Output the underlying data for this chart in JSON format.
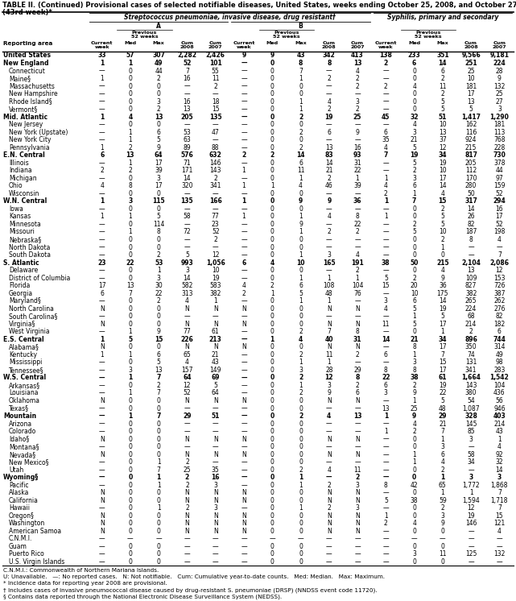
{
  "title_line1": "TABLE II. (Continued) Provisional cases of selected notifiable diseases, United States, weeks ending October 25, 2008, and October 27, 2007",
  "title_line2": "(43rd week)*",
  "col_group1": "Streptococcus pneumoniae, invasive disease, drug resistant†",
  "col_group1a": "A",
  "col_group1b": "B",
  "col_group2": "Syphilis, primary and secondary",
  "footnotes": [
    "C.N.M.I.: Commonwealth of Northern Mariana Islands.",
    "U: Unavailable.   —: No reported cases.   N: Not notifiable.   Cum: Cumulative year-to-date counts.   Med: Median.   Max: Maximum.",
    "* Incidence data for reporting year 2008 are provisional.",
    "† Includes cases of invasive pneumococcal disease caused by drug-resistant S. pneumoniae (DRSP) (NNDSS event code 11720).",
    "§ Contains data reported through the National Electronic Disease Surveillance System (NEDSS)."
  ],
  "rows": [
    [
      "United States",
      "33",
      "57",
      "307",
      "2,282",
      "2,426",
      "9",
      "9",
      "43",
      "342",
      "413",
      "138",
      "233",
      "351",
      "9,566",
      "9,181"
    ],
    [
      "New England",
      "1",
      "1",
      "49",
      "52",
      "101",
      "—",
      "0",
      "8",
      "8",
      "13",
      "2",
      "6",
      "14",
      "251",
      "224"
    ],
    [
      "Connecticut",
      "—",
      "0",
      "44",
      "7",
      "55",
      "—",
      "0",
      "7",
      "—",
      "4",
      "—",
      "0",
      "6",
      "25",
      "28"
    ],
    [
      "Maine§",
      "1",
      "0",
      "2",
      "16",
      "11",
      "—",
      "0",
      "1",
      "2",
      "2",
      "—",
      "0",
      "2",
      "10",
      "9"
    ],
    [
      "Massachusetts",
      "—",
      "0",
      "0",
      "—",
      "2",
      "—",
      "0",
      "0",
      "—",
      "2",
      "2",
      "4",
      "11",
      "181",
      "132"
    ],
    [
      "New Hampshire",
      "—",
      "0",
      "0",
      "—",
      "—",
      "—",
      "0",
      "0",
      "—",
      "—",
      "—",
      "0",
      "2",
      "17",
      "25"
    ],
    [
      "Rhode Island§",
      "—",
      "0",
      "3",
      "16",
      "18",
      "—",
      "0",
      "1",
      "4",
      "3",
      "—",
      "0",
      "5",
      "13",
      "27"
    ],
    [
      "Vermont§",
      "—",
      "0",
      "2",
      "13",
      "15",
      "—",
      "0",
      "1",
      "2",
      "2",
      "—",
      "0",
      "5",
      "5",
      "3"
    ],
    [
      "Mid. Atlantic",
      "1",
      "4",
      "13",
      "205",
      "135",
      "—",
      "0",
      "2",
      "19",
      "25",
      "45",
      "32",
      "51",
      "1,417",
      "1,290"
    ],
    [
      "New Jersey",
      "—",
      "0",
      "0",
      "—",
      "—",
      "—",
      "0",
      "0",
      "—",
      "—",
      "—",
      "4",
      "10",
      "162",
      "181"
    ],
    [
      "New York (Upstate)",
      "—",
      "1",
      "6",
      "53",
      "47",
      "—",
      "0",
      "2",
      "6",
      "9",
      "6",
      "3",
      "13",
      "116",
      "113"
    ],
    [
      "New York City",
      "—",
      "1",
      "5",
      "63",
      "—",
      "—",
      "0",
      "0",
      "—",
      "—",
      "35",
      "21",
      "37",
      "924",
      "768"
    ],
    [
      "Pennsylvania",
      "1",
      "2",
      "9",
      "89",
      "88",
      "—",
      "0",
      "2",
      "13",
      "16",
      "4",
      "5",
      "12",
      "215",
      "228"
    ],
    [
      "E.N. Central",
      "6",
      "13",
      "64",
      "576",
      "632",
      "2",
      "2",
      "14",
      "83",
      "93",
      "7",
      "19",
      "34",
      "817",
      "730"
    ],
    [
      "Illinois",
      "—",
      "1",
      "17",
      "71",
      "146",
      "—",
      "0",
      "6",
      "14",
      "31",
      "—",
      "5",
      "19",
      "205",
      "378"
    ],
    [
      "Indiana",
      "2",
      "2",
      "39",
      "171",
      "143",
      "1",
      "0",
      "11",
      "21",
      "22",
      "—",
      "2",
      "10",
      "112",
      "44"
    ],
    [
      "Michigan",
      "—",
      "0",
      "3",
      "14",
      "2",
      "—",
      "0",
      "1",
      "2",
      "1",
      "1",
      "3",
      "17",
      "170",
      "97"
    ],
    [
      "Ohio",
      "4",
      "8",
      "17",
      "320",
      "341",
      "1",
      "1",
      "4",
      "46",
      "39",
      "4",
      "6",
      "14",
      "280",
      "159"
    ],
    [
      "Wisconsin",
      "—",
      "0",
      "0",
      "—",
      "—",
      "—",
      "0",
      "0",
      "—",
      "—",
      "2",
      "1",
      "4",
      "50",
      "52"
    ],
    [
      "W.N. Central",
      "1",
      "3",
      "115",
      "135",
      "166",
      "1",
      "0",
      "9",
      "9",
      "36",
      "1",
      "7",
      "15",
      "317",
      "294"
    ],
    [
      "Iowa",
      "—",
      "0",
      "0",
      "—",
      "—",
      "—",
      "0",
      "0",
      "—",
      "—",
      "—",
      "0",
      "2",
      "14",
      "16"
    ],
    [
      "Kansas",
      "1",
      "1",
      "5",
      "58",
      "77",
      "1",
      "0",
      "1",
      "4",
      "8",
      "1",
      "0",
      "5",
      "26",
      "17"
    ],
    [
      "Minnesota",
      "—",
      "0",
      "114",
      "—",
      "23",
      "—",
      "0",
      "9",
      "—",
      "22",
      "—",
      "2",
      "5",
      "82",
      "52"
    ],
    [
      "Missouri",
      "—",
      "1",
      "8",
      "72",
      "52",
      "—",
      "0",
      "1",
      "2",
      "2",
      "—",
      "5",
      "10",
      "187",
      "198"
    ],
    [
      "Nebraska§",
      "—",
      "0",
      "0",
      "—",
      "2",
      "—",
      "0",
      "0",
      "—",
      "—",
      "—",
      "0",
      "2",
      "8",
      "4"
    ],
    [
      "North Dakota",
      "—",
      "0",
      "0",
      "—",
      "—",
      "—",
      "0",
      "0",
      "—",
      "—",
      "—",
      "0",
      "1",
      "—",
      "—"
    ],
    [
      "South Dakota",
      "—",
      "0",
      "2",
      "5",
      "12",
      "—",
      "0",
      "1",
      "3",
      "4",
      "—",
      "0",
      "0",
      "—",
      "7"
    ],
    [
      "S. Atlantic",
      "23",
      "22",
      "53",
      "993",
      "1,056",
      "6",
      "4",
      "10",
      "165",
      "191",
      "38",
      "50",
      "215",
      "2,104",
      "2,086"
    ],
    [
      "Delaware",
      "—",
      "0",
      "1",
      "3",
      "10",
      "—",
      "0",
      "0",
      "—",
      "2",
      "—",
      "0",
      "4",
      "13",
      "12"
    ],
    [
      "District of Columbia",
      "—",
      "0",
      "3",
      "14",
      "19",
      "—",
      "0",
      "1",
      "1",
      "1",
      "5",
      "2",
      "9",
      "109",
      "153"
    ],
    [
      "Florida",
      "17",
      "13",
      "30",
      "582",
      "583",
      "4",
      "2",
      "6",
      "108",
      "104",
      "15",
      "20",
      "36",
      "827",
      "726"
    ],
    [
      "Georgia",
      "6",
      "7",
      "22",
      "313",
      "382",
      "2",
      "1",
      "5",
      "48",
      "76",
      "—",
      "10",
      "175",
      "382",
      "387"
    ],
    [
      "Maryland§",
      "—",
      "0",
      "2",
      "4",
      "1",
      "—",
      "0",
      "1",
      "1",
      "—",
      "3",
      "6",
      "14",
      "265",
      "262"
    ],
    [
      "North Carolina",
      "N",
      "0",
      "0",
      "N",
      "N",
      "N",
      "0",
      "0",
      "N",
      "N",
      "4",
      "5",
      "19",
      "224",
      "276"
    ],
    [
      "South Carolina§",
      "—",
      "0",
      "0",
      "—",
      "—",
      "—",
      "0",
      "0",
      "—",
      "—",
      "—",
      "1",
      "5",
      "68",
      "82"
    ],
    [
      "Virginia§",
      "N",
      "0",
      "0",
      "N",
      "N",
      "N",
      "0",
      "0",
      "N",
      "N",
      "11",
      "5",
      "17",
      "214",
      "182"
    ],
    [
      "West Virginia",
      "—",
      "1",
      "9",
      "77",
      "61",
      "—",
      "0",
      "2",
      "7",
      "8",
      "—",
      "0",
      "1",
      "2",
      "6"
    ],
    [
      "E.S. Central",
      "1",
      "5",
      "15",
      "226",
      "213",
      "—",
      "1",
      "4",
      "40",
      "31",
      "14",
      "21",
      "34",
      "896",
      "744"
    ],
    [
      "Alabama§",
      "N",
      "0",
      "0",
      "N",
      "N",
      "N",
      "0",
      "0",
      "N",
      "N",
      "—",
      "8",
      "17",
      "350",
      "314"
    ],
    [
      "Kentucky",
      "1",
      "1",
      "6",
      "65",
      "21",
      "—",
      "0",
      "2",
      "11",
      "2",
      "6",
      "1",
      "7",
      "74",
      "49"
    ],
    [
      "Mississippi",
      "—",
      "0",
      "5",
      "4",
      "43",
      "—",
      "0",
      "1",
      "1",
      "—",
      "—",
      "3",
      "15",
      "131",
      "98"
    ],
    [
      "Tennessee§",
      "—",
      "3",
      "13",
      "157",
      "149",
      "—",
      "0",
      "3",
      "28",
      "29",
      "8",
      "8",
      "17",
      "341",
      "283"
    ],
    [
      "W.S. Central",
      "—",
      "1",
      "7",
      "64",
      "69",
      "—",
      "0",
      "2",
      "12",
      "8",
      "22",
      "38",
      "61",
      "1,664",
      "1,542"
    ],
    [
      "Arkansas§",
      "—",
      "0",
      "2",
      "12",
      "5",
      "—",
      "0",
      "1",
      "3",
      "2",
      "6",
      "2",
      "19",
      "143",
      "104"
    ],
    [
      "Louisiana",
      "—",
      "1",
      "7",
      "52",
      "64",
      "—",
      "0",
      "2",
      "9",
      "6",
      "3",
      "9",
      "22",
      "380",
      "436"
    ],
    [
      "Oklahoma",
      "N",
      "0",
      "0",
      "N",
      "N",
      "N",
      "0",
      "0",
      "N",
      "N",
      "—",
      "1",
      "5",
      "54",
      "56"
    ],
    [
      "Texas§",
      "—",
      "0",
      "0",
      "—",
      "—",
      "—",
      "0",
      "0",
      "—",
      "—",
      "13",
      "25",
      "48",
      "1,087",
      "946"
    ],
    [
      "Mountain",
      "—",
      "1",
      "7",
      "29",
      "51",
      "—",
      "0",
      "2",
      "4",
      "13",
      "1",
      "9",
      "29",
      "328",
      "403"
    ],
    [
      "Arizona",
      "—",
      "0",
      "0",
      "—",
      "—",
      "—",
      "0",
      "0",
      "—",
      "—",
      "—",
      "4",
      "21",
      "145",
      "214"
    ],
    [
      "Colorado",
      "—",
      "0",
      "0",
      "—",
      "—",
      "—",
      "0",
      "0",
      "—",
      "—",
      "1",
      "2",
      "7",
      "85",
      "43"
    ],
    [
      "Idaho§",
      "N",
      "0",
      "0",
      "N",
      "N",
      "N",
      "0",
      "0",
      "N",
      "N",
      "—",
      "0",
      "1",
      "3",
      "1"
    ],
    [
      "Montana§",
      "—",
      "0",
      "0",
      "—",
      "—",
      "—",
      "0",
      "0",
      "—",
      "—",
      "—",
      "0",
      "3",
      "—",
      "4"
    ],
    [
      "Nevada§",
      "N",
      "0",
      "0",
      "N",
      "N",
      "N",
      "0",
      "0",
      "N",
      "N",
      "—",
      "1",
      "6",
      "58",
      "92"
    ],
    [
      "New Mexico§",
      "—",
      "0",
      "1",
      "2",
      "—",
      "—",
      "0",
      "0",
      "—",
      "—",
      "—",
      "1",
      "4",
      "34",
      "32"
    ],
    [
      "Utah",
      "—",
      "0",
      "7",
      "25",
      "35",
      "—",
      "0",
      "2",
      "4",
      "11",
      "—",
      "0",
      "2",
      "—",
      "14"
    ],
    [
      "Wyoming§",
      "—",
      "0",
      "1",
      "2",
      "16",
      "—",
      "0",
      "1",
      "—",
      "2",
      "—",
      "0",
      "1",
      "3",
      "3"
    ],
    [
      "Pacific",
      "—",
      "0",
      "1",
      "2",
      "3",
      "—",
      "0",
      "1",
      "2",
      "3",
      "8",
      "42",
      "65",
      "1,772",
      "1,868"
    ],
    [
      "Alaska",
      "N",
      "0",
      "0",
      "N",
      "N",
      "N",
      "0",
      "0",
      "N",
      "N",
      "—",
      "0",
      "1",
      "1",
      "7"
    ],
    [
      "California",
      "N",
      "0",
      "0",
      "N",
      "N",
      "N",
      "0",
      "0",
      "N",
      "N",
      "5",
      "38",
      "59",
      "1,594",
      "1,718"
    ],
    [
      "Hawaii",
      "—",
      "0",
      "1",
      "2",
      "3",
      "—",
      "0",
      "1",
      "2",
      "3",
      "—",
      "0",
      "2",
      "12",
      "7"
    ],
    [
      "Oregon§",
      "N",
      "0",
      "0",
      "N",
      "N",
      "N",
      "0",
      "0",
      "N",
      "N",
      "1",
      "0",
      "3",
      "19",
      "15"
    ],
    [
      "Washington",
      "N",
      "0",
      "0",
      "N",
      "N",
      "N",
      "0",
      "0",
      "N",
      "N",
      "2",
      "4",
      "9",
      "146",
      "121"
    ],
    [
      "American Samoa",
      "N",
      "0",
      "0",
      "N",
      "N",
      "N",
      "0",
      "0",
      "N",
      "N",
      "—",
      "0",
      "0",
      "—",
      "4"
    ],
    [
      "C.N.M.I.",
      "—",
      "—",
      "—",
      "—",
      "—",
      "—",
      "—",
      "—",
      "—",
      "—",
      "—",
      "—",
      "—",
      "—",
      "—"
    ],
    [
      "Guam",
      "—",
      "0",
      "0",
      "—",
      "—",
      "—",
      "0",
      "0",
      "—",
      "—",
      "—",
      "0",
      "0",
      "—",
      "—"
    ],
    [
      "Puerto Rico",
      "—",
      "0",
      "0",
      "—",
      "—",
      "—",
      "0",
      "0",
      "—",
      "—",
      "—",
      "3",
      "11",
      "125",
      "132"
    ],
    [
      "U.S. Virgin Islands",
      "—",
      "0",
      "0",
      "—",
      "—",
      "—",
      "0",
      "0",
      "—",
      "—",
      "—",
      "0",
      "0",
      "—",
      "—"
    ]
  ],
  "bold_rows": [
    0,
    1,
    8,
    13,
    19,
    27,
    37,
    42,
    47,
    55
  ],
  "section_header_rows": [
    1,
    8,
    13,
    19,
    27,
    37,
    42,
    47,
    55
  ]
}
